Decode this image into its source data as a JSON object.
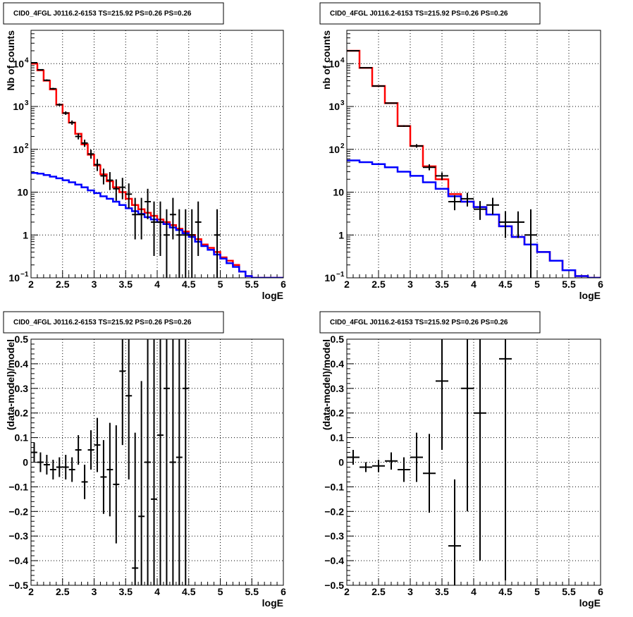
{
  "chart_data": [
    {
      "id": "counts-left",
      "type": "histogram",
      "title": "CID0_4FGL J0116.2-6153 TS=215.92 PS=0.26 PS=0.26",
      "xlabel": "logE",
      "ylabel": "Nb of counts",
      "xlim": [
        2,
        6
      ],
      "ylim": [
        0.1,
        60000
      ],
      "yscale": "log",
      "grid": true,
      "x_ticks": [
        "2",
        "2.5",
        "3",
        "3.5",
        "4",
        "4.5",
        "5",
        "5.5",
        "6"
      ],
      "y_ticks": [
        {
          "value": 0.1,
          "label": "10",
          "exp": "−1"
        },
        {
          "value": 1,
          "label": "1",
          "exp": ""
        },
        {
          "value": 10,
          "label": "10",
          "exp": ""
        },
        {
          "value": 100,
          "label": "10",
          "exp": "2"
        },
        {
          "value": 1000,
          "label": "10",
          "exp": "3"
        },
        {
          "value": 10000,
          "label": "10",
          "exp": "4"
        }
      ],
      "bin_width": 0.1,
      "series": [
        {
          "color": "#ff0000",
          "kind": "step",
          "x": [
            2.0,
            2.1,
            2.2,
            2.3,
            2.4,
            2.5,
            2.6,
            2.7,
            2.8,
            2.9,
            3.0,
            3.1,
            3.2,
            3.3,
            3.4,
            3.5,
            3.6,
            3.7,
            3.8,
            3.9,
            4.0,
            4.1,
            4.2,
            4.3,
            4.4,
            4.5,
            4.6,
            4.7,
            4.8,
            4.9,
            5.0,
            5.1,
            5.2,
            5.3,
            5.4,
            5.5,
            5.6,
            5.7,
            5.8,
            5.9
          ],
          "values": [
            10000,
            7000,
            4000,
            2500,
            1100,
            700,
            420,
            230,
            130,
            75,
            42,
            26,
            18,
            13,
            10,
            7,
            5,
            4,
            3.3,
            2.8,
            2.3,
            2.0,
            1.7,
            1.4,
            1.2,
            1.0,
            0.8,
            0.6,
            0.5,
            0.4,
            0.3,
            0.25,
            0.2,
            0.14,
            0.11,
            0.1,
            0.1,
            0.1,
            0.1,
            0.1
          ]
        },
        {
          "color": "#0000ff",
          "kind": "step",
          "x": [
            2.0,
            2.1,
            2.2,
            2.3,
            2.4,
            2.5,
            2.6,
            2.7,
            2.8,
            2.9,
            3.0,
            3.1,
            3.2,
            3.3,
            3.4,
            3.5,
            3.6,
            3.7,
            3.8,
            3.9,
            4.0,
            4.1,
            4.2,
            4.3,
            4.4,
            4.5,
            4.6,
            4.7,
            4.8,
            4.9,
            5.0,
            5.1,
            5.2,
            5.3,
            5.4,
            5.5,
            5.6,
            5.7,
            5.8,
            5.9
          ],
          "values": [
            28,
            27,
            25,
            23,
            21,
            19,
            17,
            15,
            13,
            11,
            9.5,
            8,
            7,
            6,
            5,
            4.2,
            3.6,
            3.1,
            2.6,
            2.3,
            2.0,
            1.8,
            1.5,
            1.3,
            1.1,
            0.9,
            0.7,
            0.55,
            0.45,
            0.35,
            0.28,
            0.22,
            0.18,
            0.14,
            0.11,
            0.1,
            0.1,
            0.1,
            0.1,
            0.1
          ]
        },
        {
          "color": "#000000",
          "kind": "errorbars",
          "x": [
            2.05,
            2.15,
            2.25,
            2.35,
            2.45,
            2.55,
            2.65,
            2.75,
            2.85,
            2.95,
            3.05,
            3.15,
            3.25,
            3.35,
            3.45,
            3.55,
            3.65,
            3.75,
            3.85,
            3.95,
            4.05,
            4.15,
            4.25,
            4.35,
            4.45,
            4.55,
            4.65,
            4.95
          ],
          "values": [
            10500,
            7200,
            4100,
            2600,
            1100,
            700,
            420,
            200,
            140,
            78,
            44,
            24,
            19,
            12,
            13,
            9,
            3,
            3,
            6,
            2,
            2,
            1,
            3,
            1,
            1,
            1,
            2,
            1
          ],
          "err_lo": [
            0.01,
            0.01,
            0.02,
            0.02,
            0.03,
            0.04,
            0.05,
            0.07,
            0.09,
            0.11,
            0.15,
            0.2,
            0.23,
            0.28,
            0.28,
            0.33,
            0.58,
            0.58,
            0.41,
            0.79,
            0.79,
            1.5,
            0.58,
            1.5,
            1.5,
            1.5,
            0.79,
            1.5
          ],
          "err_hi": [
            0.01,
            0.01,
            0.02,
            0.02,
            0.03,
            0.04,
            0.05,
            0.07,
            0.08,
            0.1,
            0.13,
            0.17,
            0.19,
            0.22,
            0.22,
            0.25,
            0.39,
            0.39,
            0.3,
            0.48,
            0.48,
            0.6,
            0.39,
            0.6,
            0.6,
            0.6,
            0.48,
            0.6
          ]
        }
      ]
    },
    {
      "id": "counts-right",
      "type": "histogram",
      "title": "CID0_4FGL J0116.2-6153 TS=215.92 PS=0.26 PS=0.26",
      "xlabel": "logE",
      "ylabel": "nb of counts",
      "xlim": [
        2,
        6
      ],
      "ylim": [
        0.1,
        60000
      ],
      "yscale": "log",
      "grid": true,
      "x_ticks": [
        "2",
        "2.5",
        "3",
        "3.5",
        "4",
        "4.5",
        "5",
        "5.5",
        "6"
      ],
      "y_ticks": [
        {
          "value": 0.1,
          "label": "10",
          "exp": "−1"
        },
        {
          "value": 1,
          "label": "1",
          "exp": ""
        },
        {
          "value": 10,
          "label": "10",
          "exp": ""
        },
        {
          "value": 100,
          "label": "10",
          "exp": "2"
        },
        {
          "value": 1000,
          "label": "10",
          "exp": "3"
        },
        {
          "value": 10000,
          "label": "10",
          "exp": "4"
        }
      ],
      "bin_width": 0.2,
      "series": [
        {
          "color": "#ff0000",
          "kind": "step",
          "x": [
            2.0,
            2.2,
            2.4,
            2.6,
            2.8,
            3.0,
            3.2,
            3.4,
            3.6,
            3.8,
            4.0,
            4.2,
            4.4,
            4.6,
            4.8,
            5.0,
            5.2,
            5.4,
            5.6,
            5.8
          ],
          "values": [
            20000,
            8000,
            3000,
            1200,
            350,
            120,
            40,
            20,
            9,
            6,
            4.5,
            3,
            1.6,
            0.9,
            0.6,
            0.4,
            0.25,
            0.15,
            0.11,
            0.1
          ]
        },
        {
          "color": "#0000ff",
          "kind": "step",
          "x": [
            2.0,
            2.2,
            2.4,
            2.6,
            2.8,
            3.0,
            3.2,
            3.4,
            3.6,
            3.8,
            4.0,
            4.2,
            4.4,
            4.6,
            4.8,
            5.0,
            5.2,
            5.4,
            5.6,
            5.8
          ],
          "values": [
            55,
            50,
            45,
            38,
            30,
            24,
            17,
            12,
            8,
            6,
            4.5,
            3,
            1.6,
            0.9,
            0.6,
            0.4,
            0.25,
            0.15,
            0.11,
            0.1
          ]
        },
        {
          "color": "#000000",
          "kind": "errorbars",
          "x": [
            2.1,
            2.3,
            2.5,
            2.7,
            2.9,
            3.1,
            3.3,
            3.5,
            3.7,
            3.9,
            4.1,
            4.3,
            4.5,
            4.7,
            4.9
          ],
          "values": [
            20000,
            8000,
            3000,
            1200,
            350,
            120,
            38,
            24,
            6,
            7,
            4,
            5,
            2,
            2,
            1
          ],
          "err_lo": [
            0.003,
            0.005,
            0.008,
            0.013,
            0.02,
            0.04,
            0.07,
            0.09,
            0.2,
            0.18,
            0.25,
            0.22,
            0.37,
            0.37,
            1.5
          ],
          "err_hi": [
            0.003,
            0.005,
            0.008,
            0.013,
            0.02,
            0.04,
            0.07,
            0.08,
            0.15,
            0.14,
            0.19,
            0.17,
            0.25,
            0.25,
            0.6
          ]
        }
      ]
    },
    {
      "id": "residuals-left",
      "type": "errorbar",
      "title": "CID0_4FGL J0116.2-6153 TS=215.92 PS=0.26 PS=0.26",
      "xlabel": "logE",
      "ylabel": "(data-model)/model",
      "xlim": [
        2,
        6
      ],
      "ylim": [
        -0.5,
        0.5
      ],
      "yscale": "linear",
      "grid": true,
      "x_ticks": [
        "2",
        "2.5",
        "3",
        "3.5",
        "4",
        "4.5",
        "5",
        "5.5",
        "6"
      ],
      "y_ticks": [
        {
          "value": -0.5,
          "label": "−0.5"
        },
        {
          "value": -0.4,
          "label": "−0.4"
        },
        {
          "value": -0.3,
          "label": "−0.3"
        },
        {
          "value": -0.2,
          "label": "−0.2"
        },
        {
          "value": -0.1,
          "label": "−0.1"
        },
        {
          "value": 0,
          "label": "0"
        },
        {
          "value": 0.1,
          "label": "0.1"
        },
        {
          "value": 0.2,
          "label": "0.2"
        },
        {
          "value": 0.3,
          "label": "0.3"
        },
        {
          "value": 0.4,
          "label": "0.4"
        },
        {
          "value": 0.5,
          "label": "0.5"
        }
      ],
      "bin_width": 0.1,
      "series": [
        {
          "color": "#000000",
          "kind": "errorbars",
          "x": [
            2.05,
            2.15,
            2.25,
            2.35,
            2.45,
            2.55,
            2.65,
            2.75,
            2.85,
            2.95,
            3.05,
            3.15,
            3.25,
            3.35,
            3.45,
            3.55,
            3.65,
            3.75,
            3.85,
            3.95,
            4.05,
            4.15,
            4.25,
            4.35,
            4.45
          ],
          "values": [
            0.04,
            0.0,
            -0.01,
            -0.03,
            -0.02,
            -0.02,
            -0.03,
            0.05,
            -0.08,
            0.05,
            0.07,
            -0.06,
            -0.03,
            -0.09,
            0.37,
            0.27,
            -0.43,
            -0.22,
            0.0,
            -0.15,
            0.11,
            0.3,
            0.0,
            0.02,
            0.3
          ],
          "err": [
            0.04,
            0.04,
            0.04,
            0.04,
            0.04,
            0.05,
            0.05,
            0.06,
            0.07,
            0.08,
            0.11,
            0.15,
            0.19,
            0.24,
            0.3,
            0.34,
            0.55,
            0.55,
            0.6,
            0.75,
            0.75,
            0.9,
            0.6,
            0.9,
            0.9
          ]
        }
      ]
    },
    {
      "id": "residuals-right",
      "type": "errorbar",
      "title": "CID0_4FGL J0116.2-6153 TS=215.92 PS=0.26 PS=0.26",
      "xlabel": "logE",
      "ylabel": "(data-model)/model",
      "xlim": [
        2,
        6
      ],
      "ylim": [
        -0.5,
        0.5
      ],
      "yscale": "linear",
      "grid": true,
      "x_ticks": [
        "2",
        "2.5",
        "3",
        "3.5",
        "4",
        "4.5",
        "5",
        "5.5",
        "6"
      ],
      "y_ticks": [
        {
          "value": -0.5,
          "label": "−0.5"
        },
        {
          "value": -0.4,
          "label": "−0.4"
        },
        {
          "value": -0.3,
          "label": "−0.3"
        },
        {
          "value": -0.2,
          "label": "−0.2"
        },
        {
          "value": -0.1,
          "label": "−0.1"
        },
        {
          "value": 0,
          "label": "0"
        },
        {
          "value": 0.1,
          "label": "0.1"
        },
        {
          "value": 0.2,
          "label": "0.2"
        },
        {
          "value": 0.3,
          "label": "0.3"
        },
        {
          "value": 0.4,
          "label": "0.4"
        },
        {
          "value": 0.5,
          "label": "0.5"
        }
      ],
      "bin_width": 0.2,
      "series": [
        {
          "color": "#000000",
          "kind": "errorbars",
          "x": [
            2.1,
            2.3,
            2.5,
            2.7,
            2.9,
            3.1,
            3.3,
            3.5,
            3.7,
            3.9,
            4.1,
            4.5
          ],
          "values": [
            0.02,
            -0.02,
            -0.015,
            0.005,
            -0.03,
            0.02,
            -0.045,
            0.33,
            -0.34,
            0.3,
            0.2,
            0.42
          ],
          "err": [
            0.03,
            0.02,
            0.025,
            0.035,
            0.05,
            0.1,
            0.16,
            0.28,
            0.27,
            0.5,
            0.6,
            0.9
          ]
        }
      ]
    }
  ]
}
